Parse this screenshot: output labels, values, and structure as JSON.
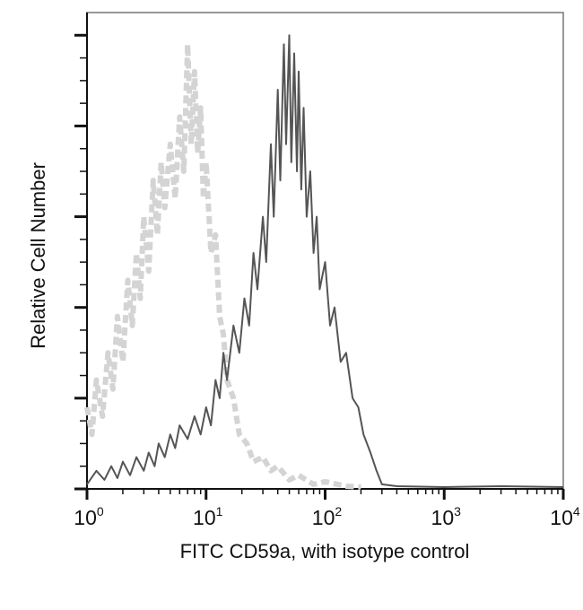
{
  "chart_data": {
    "type": "line",
    "title": "",
    "xlabel": "FITC CD59a, with isotype control",
    "ylabel": "Relative Cell Number",
    "xscale": "log",
    "xlim": [
      1,
      10000
    ],
    "ylim": [
      0,
      5.25
    ],
    "x_ticks": [
      {
        "base": "10",
        "exp": "0"
      },
      {
        "base": "10",
        "exp": "1"
      },
      {
        "base": "10",
        "exp": "2"
      },
      {
        "base": "10",
        "exp": "3"
      },
      {
        "base": "10",
        "exp": "4"
      }
    ],
    "y_tick_labels_shown": false,
    "grid": false,
    "legend": "none",
    "series": [
      {
        "style": "dashed",
        "color": "#d4d4d4",
        "x": [
          1,
          1.1,
          1.2,
          1.35,
          1.5,
          1.65,
          1.8,
          2,
          2.2,
          2.4,
          2.6,
          2.8,
          3,
          3.3,
          3.6,
          3.9,
          4.2,
          4.5,
          5,
          5.5,
          6,
          6.5,
          7,
          7.5,
          8,
          8.5,
          9,
          9.5,
          10,
          11,
          12,
          13,
          14,
          15,
          17,
          19,
          22,
          25,
          30,
          35,
          40,
          50,
          60,
          80,
          100,
          150,
          200
        ],
        "y": [
          0.9,
          0.6,
          1.2,
          0.8,
          1.5,
          1.1,
          1.9,
          1.4,
          2.3,
          1.8,
          2.6,
          2.1,
          3.0,
          2.4,
          3.4,
          2.8,
          3.6,
          3.1,
          3.8,
          3.2,
          4.1,
          3.5,
          4.9,
          3.8,
          4.6,
          3.7,
          4.2,
          3.2,
          3.6,
          2.6,
          2.8,
          1.9,
          1.7,
          1.2,
          1.0,
          0.6,
          0.5,
          0.3,
          0.35,
          0.2,
          0.25,
          0.1,
          0.15,
          0.05,
          0.08,
          0.03,
          0.02
        ]
      },
      {
        "style": "solid",
        "color": "#555555",
        "x": [
          1,
          1.2,
          1.4,
          1.6,
          1.8,
          2,
          2.3,
          2.6,
          3,
          3.3,
          3.7,
          4,
          4.5,
          5,
          5.5,
          6,
          7,
          8,
          9,
          10,
          11,
          12,
          13,
          14,
          15,
          17,
          19,
          21,
          23,
          25,
          27,
          30,
          32,
          35,
          37,
          40,
          42,
          45,
          47,
          50,
          52,
          55,
          58,
          60,
          63,
          66,
          70,
          75,
          80,
          85,
          90,
          100,
          110,
          120,
          135,
          150,
          170,
          190,
          210,
          240,
          270,
          300,
          400,
          1000,
          3000,
          10000
        ],
        "y": [
          0.05,
          0.2,
          0.1,
          0.25,
          0.12,
          0.3,
          0.15,
          0.35,
          0.2,
          0.4,
          0.25,
          0.5,
          0.35,
          0.6,
          0.45,
          0.7,
          0.55,
          0.8,
          0.6,
          0.9,
          0.7,
          1.2,
          1.0,
          1.5,
          1.2,
          1.8,
          1.5,
          2.1,
          1.8,
          2.6,
          2.2,
          3.0,
          2.5,
          3.8,
          3.0,
          4.4,
          3.4,
          4.9,
          3.8,
          5.0,
          3.6,
          4.8,
          3.5,
          4.6,
          3.3,
          4.2,
          3.0,
          3.5,
          2.6,
          3.0,
          2.2,
          2.5,
          1.8,
          2.0,
          1.4,
          1.5,
          1.0,
          0.9,
          0.6,
          0.4,
          0.2,
          0.05,
          0.03,
          0.02,
          0.03,
          0.02
        ]
      }
    ]
  }
}
